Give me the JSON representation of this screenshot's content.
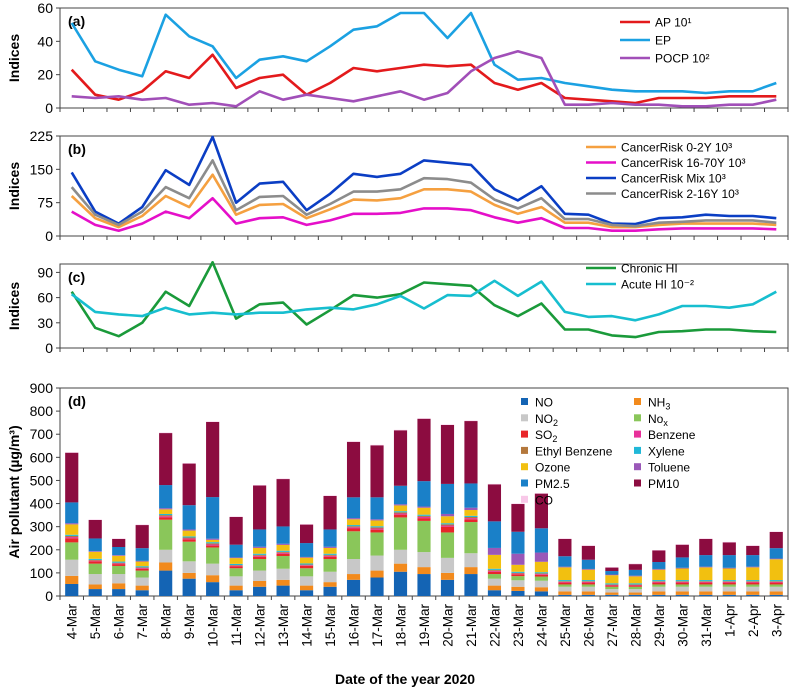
{
  "figure": {
    "xlabel": "Date of the year 2020",
    "dates": [
      "4-Mar",
      "5-Mar",
      "6-Mar",
      "7-Mar",
      "8-Mar",
      "9-Mar",
      "10-Mar",
      "11-Mar",
      "12-Mar",
      "13-Mar",
      "14-Mar",
      "15-Mar",
      "16-Mar",
      "17-Mar",
      "18-Mar",
      "19-Mar",
      "20-Mar",
      "21-Mar",
      "22-Mar",
      "23-Mar",
      "24-Mar",
      "25-Mar",
      "26-Mar",
      "27-Mar",
      "28-Mar",
      "29-Mar",
      "30-Mar",
      "31-Mar",
      "1-Apr",
      "2-Apr",
      "3-Apr"
    ]
  },
  "chart_data": [
    {
      "panel": "(a)",
      "type": "line",
      "ylabel": "Indices",
      "ylim": [
        0,
        60
      ],
      "yticks": [
        0,
        20,
        40,
        60
      ],
      "series": [
        {
          "name": "AP 10¹",
          "color": "#e31a1c",
          "values": [
            23,
            8,
            5,
            10,
            22,
            18,
            32,
            12,
            18,
            20,
            8,
            15,
            24,
            22,
            24,
            26,
            25,
            26,
            15,
            11,
            15,
            6,
            5,
            4,
            3,
            6,
            6,
            6,
            7,
            7,
            7
          ]
        },
        {
          "name": "EP",
          "color": "#1ba1e2",
          "values": [
            51,
            28,
            23,
            19,
            56,
            43,
            37,
            18,
            29,
            31,
            28,
            37,
            47,
            49,
            57,
            57,
            42,
            57,
            26,
            17,
            18,
            15,
            13,
            11,
            10,
            10,
            10,
            9,
            10,
            10,
            15
          ]
        },
        {
          "name": "POCP 10²",
          "color": "#a14fb8",
          "values": [
            7,
            6,
            7,
            5,
            6,
            2,
            3,
            1,
            10,
            5,
            8,
            6,
            4,
            7,
            10,
            5,
            9,
            22,
            30,
            34,
            30,
            2,
            2,
            3,
            2,
            2,
            1,
            1,
            2,
            2,
            5
          ]
        }
      ]
    },
    {
      "panel": "(b)",
      "type": "line",
      "ylabel": "Indices",
      "ylim": [
        0,
        225
      ],
      "yticks": [
        0,
        75,
        150,
        225
      ],
      "series": [
        {
          "name": "CancerRisk 0-2Y 10³",
          "color": "#f5a040",
          "values": [
            90,
            40,
            20,
            45,
            90,
            65,
            138,
            48,
            70,
            72,
            40,
            60,
            82,
            80,
            85,
            105,
            105,
            100,
            70,
            50,
            65,
            30,
            30,
            20,
            20,
            25,
            28,
            28,
            28,
            28,
            25
          ]
        },
        {
          "name": "CancerRisk 16-70Y 10³",
          "color": "#e50fc9",
          "values": [
            55,
            25,
            12,
            28,
            55,
            40,
            85,
            28,
            40,
            42,
            25,
            35,
            50,
            50,
            52,
            62,
            62,
            58,
            42,
            30,
            40,
            18,
            18,
            12,
            12,
            15,
            17,
            17,
            17,
            17,
            15
          ]
        },
        {
          "name": "CancerRisk Mix 10³",
          "color": "#0b3ec4",
          "values": [
            143,
            55,
            28,
            65,
            148,
            115,
            223,
            75,
            118,
            122,
            58,
            95,
            140,
            133,
            140,
            170,
            165,
            160,
            105,
            80,
            112,
            50,
            48,
            28,
            27,
            40,
            42,
            48,
            45,
            45,
            40
          ]
        },
        {
          "name": "CancerRisk 2-16Y 10³",
          "color": "#8c8c8c",
          "values": [
            110,
            48,
            25,
            55,
            110,
            85,
            170,
            58,
            88,
            90,
            48,
            72,
            100,
            100,
            105,
            130,
            128,
            120,
            82,
            62,
            85,
            38,
            38,
            25,
            22,
            30,
            32,
            35,
            35,
            35,
            30
          ]
        }
      ]
    },
    {
      "panel": "(c)",
      "type": "line",
      "ylabel": "Indices",
      "ylim": [
        0,
        100
      ],
      "yticks": [
        0,
        30,
        60,
        90
      ],
      "series": [
        {
          "name": "Chronic HI",
          "color": "#1a9a3a",
          "values": [
            67,
            24,
            14,
            30,
            67,
            50,
            102,
            35,
            52,
            54,
            28,
            45,
            63,
            60,
            64,
            78,
            76,
            74,
            51,
            38,
            53,
            22,
            22,
            15,
            13,
            19,
            20,
            22,
            22,
            20,
            19
          ]
        },
        {
          "name": "Acute HI 10⁻²",
          "color": "#17becf",
          "values": [
            64,
            43,
            40,
            38,
            48,
            40,
            42,
            40,
            42,
            42,
            46,
            48,
            46,
            52,
            62,
            47,
            63,
            62,
            80,
            62,
            79,
            43,
            37,
            38,
            33,
            40,
            50,
            50,
            48,
            52,
            67
          ]
        }
      ]
    },
    {
      "panel": "(d)",
      "type": "bar",
      "stacked": true,
      "ylabel": "Air pollutant (µg/m³)",
      "ylim": [
        0,
        900
      ],
      "yticks": [
        0,
        100,
        200,
        300,
        400,
        500,
        600,
        700,
        800,
        900
      ],
      "series": [
        {
          "name": "NO",
          "color": "#1464b4",
          "values": [
            52,
            30,
            30,
            25,
            110,
            75,
            60,
            25,
            40,
            45,
            25,
            40,
            70,
            80,
            105,
            95,
            70,
            95,
            25,
            22,
            20,
            5,
            5,
            5,
            5,
            5,
            5,
            5,
            5,
            5,
            5
          ]
        },
        {
          "name": "NH3",
          "color": "#f28a1c",
          "values": [
            35,
            20,
            25,
            20,
            35,
            25,
            30,
            20,
            25,
            25,
            20,
            20,
            25,
            30,
            35,
            30,
            30,
            30,
            20,
            18,
            18,
            15,
            15,
            10,
            10,
            15,
            15,
            15,
            15,
            15,
            15
          ]
        },
        {
          "name": "NO2",
          "color": "#c8c8c8",
          "values": [
            70,
            45,
            40,
            35,
            55,
            50,
            50,
            40,
            45,
            48,
            40,
            45,
            65,
            65,
            60,
            65,
            65,
            60,
            30,
            28,
            28,
            20,
            20,
            15,
            15,
            20,
            20,
            20,
            20,
            20,
            20
          ]
        },
        {
          "name": "Nox",
          "color": "#8ac65a",
          "values": [
            75,
            45,
            35,
            30,
            130,
            85,
            70,
            35,
            50,
            55,
            35,
            55,
            120,
            100,
            140,
            135,
            110,
            135,
            20,
            18,
            18,
            10,
            10,
            10,
            10,
            10,
            10,
            10,
            10,
            10,
            10
          ]
        },
        {
          "name": "SO2",
          "color": "#e8262a",
          "values": [
            18,
            10,
            8,
            8,
            10,
            10,
            8,
            8,
            10,
            10,
            10,
            10,
            12,
            12,
            12,
            12,
            25,
            12,
            10,
            8,
            8,
            8,
            8,
            6,
            6,
            8,
            8,
            8,
            8,
            8,
            8
          ]
        },
        {
          "name": "Benzene",
          "color": "#e8309a",
          "values": [
            5,
            3,
            3,
            3,
            5,
            4,
            5,
            3,
            4,
            4,
            3,
            4,
            5,
            5,
            5,
            5,
            5,
            5,
            4,
            3,
            3,
            3,
            3,
            2,
            2,
            3,
            3,
            3,
            3,
            3,
            3
          ]
        },
        {
          "name": "Ethyl Benzene",
          "color": "#b4783c",
          "values": [
            5,
            3,
            3,
            3,
            5,
            4,
            5,
            3,
            4,
            4,
            3,
            4,
            5,
            5,
            5,
            5,
            5,
            5,
            4,
            3,
            3,
            3,
            3,
            2,
            2,
            3,
            3,
            3,
            3,
            3,
            3
          ]
        },
        {
          "name": "Xylene",
          "color": "#20b8d8",
          "values": [
            5,
            5,
            5,
            5,
            5,
            5,
            5,
            5,
            5,
            5,
            5,
            5,
            5,
            5,
            5,
            5,
            5,
            5,
            5,
            5,
            5,
            5,
            5,
            5,
            5,
            5,
            5,
            5,
            5,
            5,
            5
          ]
        },
        {
          "name": "Ozone",
          "color": "#f2c010",
          "values": [
            45,
            30,
            25,
            20,
            20,
            25,
            10,
            25,
            25,
            25,
            25,
            25,
            25,
            25,
            25,
            30,
            30,
            25,
            60,
            30,
            45,
            55,
            45,
            35,
            30,
            45,
            50,
            55,
            50,
            55,
            90
          ]
        },
        {
          "name": "Toluene",
          "color": "#9a58b8",
          "values": [
            5,
            3,
            3,
            3,
            5,
            5,
            5,
            3,
            5,
            5,
            3,
            5,
            5,
            5,
            5,
            5,
            10,
            10,
            30,
            48,
            40,
            3,
            3,
            3,
            3,
            3,
            3,
            3,
            3,
            3,
            3
          ]
        },
        {
          "name": "PM2.5",
          "color": "#1a80c8",
          "values": [
            90,
            55,
            35,
            55,
            100,
            105,
            180,
            55,
            75,
            75,
            60,
            75,
            90,
            95,
            80,
            110,
            130,
            105,
            115,
            95,
            105,
            45,
            40,
            15,
            25,
            30,
            45,
            50,
            55,
            50,
            45
          ]
        },
        {
          "name": "PM10",
          "color": "#8c0c40",
          "values": [
            215,
            80,
            35,
            100,
            225,
            180,
            325,
            120,
            190,
            205,
            80,
            145,
            240,
            225,
            240,
            270,
            255,
            270,
            160,
            120,
            150,
            75,
            60,
            15,
            25,
            50,
            55,
            70,
            55,
            40,
            70
          ]
        },
        {
          "name": "CO",
          "color": "#f8c8e8",
          "values": [
            2,
            2,
            2,
            2,
            2,
            2,
            2,
            2,
            2,
            2,
            2,
            2,
            2,
            2,
            2,
            2,
            2,
            2,
            2,
            2,
            2,
            2,
            2,
            2,
            2,
            2,
            2,
            2,
            2,
            2,
            2
          ]
        }
      ],
      "legend": [
        {
          "name": "NO",
          "color": "#1464b4",
          "base": "NO",
          "sub": ""
        },
        {
          "name": "NH3",
          "color": "#f28a1c",
          "base": "NH",
          "sub": "3"
        },
        {
          "name": "NO2",
          "color": "#c8c8c8",
          "base": "NO",
          "sub": "2"
        },
        {
          "name": "Nox",
          "color": "#8ac65a",
          "base": "No",
          "sub": "x"
        },
        {
          "name": "SO2",
          "color": "#e8262a",
          "base": "SO",
          "sub": "2"
        },
        {
          "name": "Benzene",
          "color": "#e8309a",
          "base": "Benzene",
          "sub": ""
        },
        {
          "name": "Ethyl Benzene",
          "color": "#b4783c",
          "base": "Ethyl Benzene",
          "sub": ""
        },
        {
          "name": "Xylene",
          "color": "#20b8d8",
          "base": "Xylene",
          "sub": ""
        },
        {
          "name": "Ozone",
          "color": "#f2c010",
          "base": "Ozone",
          "sub": ""
        },
        {
          "name": "Toluene",
          "color": "#9a58b8",
          "base": "Toluene",
          "sub": ""
        },
        {
          "name": "PM2.5",
          "color": "#1a80c8",
          "base": "PM2.5",
          "sub": ""
        },
        {
          "name": "PM10",
          "color": "#8c0c40",
          "base": "PM10",
          "sub": ""
        },
        {
          "name": "CO",
          "color": "#f8c8e8",
          "base": "CO",
          "sub": ""
        }
      ]
    }
  ]
}
